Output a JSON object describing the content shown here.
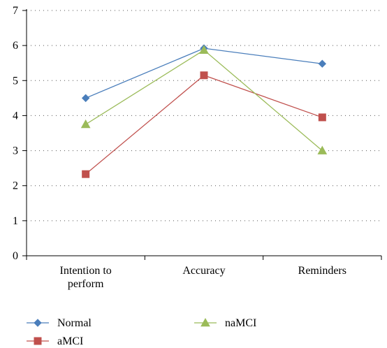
{
  "chart_data": {
    "type": "line",
    "categories": [
      [
        "Intention to",
        "perform"
      ],
      [
        "Accuracy"
      ],
      [
        "Reminders"
      ]
    ],
    "y_ticks": [
      "0",
      "1",
      "2",
      "3",
      "4",
      "5",
      "6",
      "7"
    ],
    "ylim": [
      0,
      7
    ],
    "grid": "horizontal-dotted",
    "legend_placement": "bottom",
    "series": [
      {
        "name": "Normal",
        "values": [
          4.5,
          5.92,
          5.48
        ],
        "color": "#4a7ebb",
        "marker": "diamond"
      },
      {
        "name": "aMCI",
        "values": [
          2.33,
          5.15,
          3.95
        ],
        "color": "#c0504d",
        "marker": "square"
      },
      {
        "name": "naMCI",
        "values": [
          3.75,
          5.87,
          3.0
        ],
        "color": "#9bbb59",
        "marker": "triangle"
      }
    ]
  }
}
